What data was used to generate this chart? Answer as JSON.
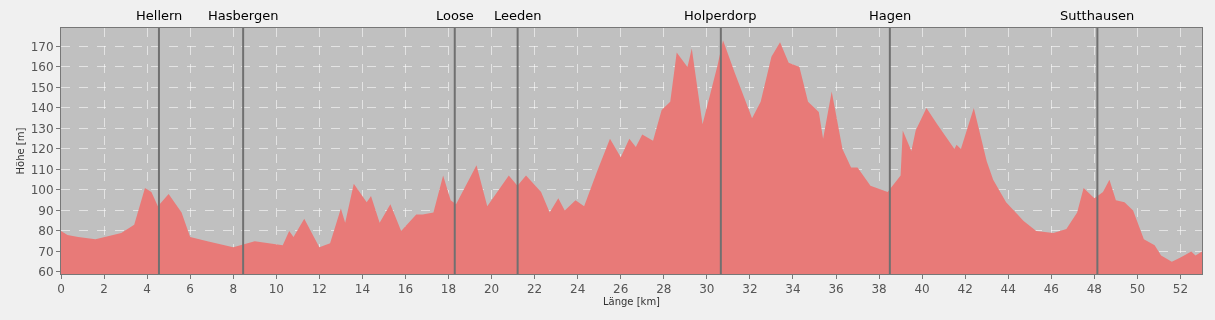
{
  "chart_data": {
    "type": "area",
    "xlabel": "Länge [km]",
    "ylabel": "Höhe [m]",
    "x": [
      0,
      0.3,
      0.8,
      1.6,
      2.8,
      3.4,
      3.9,
      4.2,
      4.5,
      5.0,
      5.6,
      6.0,
      6.8,
      8.0,
      9.0,
      10.3,
      10.6,
      10.8,
      11.3,
      12.0,
      12.5,
      13.0,
      13.2,
      13.6,
      14.2,
      14.4,
      14.8,
      15.3,
      15.8,
      16.5,
      16.8,
      17.3,
      17.75,
      18.1,
      18.35,
      19.3,
      19.8,
      20.8,
      21.2,
      21.6,
      22.3,
      22.7,
      23.1,
      23.4,
      23.9,
      24.3,
      24.9,
      25.5,
      26.0,
      26.4,
      26.7,
      27.0,
      27.5,
      27.9,
      28.3,
      28.6,
      29.1,
      29.3,
      29.8,
      30.5,
      30.75,
      31.3,
      32.1,
      32.5,
      33.0,
      33.4,
      33.8,
      34.3,
      34.7,
      35.2,
      35.4,
      35.8,
      36.3,
      36.7,
      37.0,
      37.6,
      38.4,
      39.0,
      39.1,
      39.5,
      39.7,
      40.2,
      40.7,
      41.5,
      41.6,
      41.8,
      42.4,
      43.0,
      43.3,
      43.9,
      44.7,
      45.3,
      46.1,
      46.7,
      47.2,
      47.5,
      48.0,
      48.4,
      48.7,
      49.0,
      49.4,
      49.8,
      50.3,
      50.8,
      51.1,
      51.6,
      52.0,
      52.5,
      52.7,
      53.0
    ],
    "series": [
      {
        "color": "#e87a78",
        "values": [
          80,
          78,
          77,
          76,
          79,
          83,
          101,
          99,
          92,
          98,
          89,
          77,
          75,
          72,
          75,
          73,
          80,
          77,
          86,
          72,
          74,
          91,
          84,
          103,
          94,
          97,
          84,
          93,
          80,
          88,
          88,
          89,
          107,
          95,
          93,
          112,
          92,
          107,
          102,
          107,
          99,
          89,
          96,
          90,
          95,
          92,
          109,
          125,
          116,
          125,
          121,
          127,
          124,
          139,
          143,
          167,
          160,
          169,
          132,
          161,
          173,
          157,
          135,
          143,
          165,
          172,
          162,
          160,
          143,
          138,
          125,
          148,
          120,
          111,
          111,
          102,
          99,
          107,
          129,
          119,
          129,
          140,
          132,
          120,
          122,
          120,
          140,
          114,
          105,
          94,
          85,
          80,
          79,
          81,
          89,
          101,
          96,
          99,
          105,
          95,
          94,
          90,
          76,
          73,
          68,
          65,
          67,
          70,
          68,
          70
        ]
      }
    ],
    "xlim": [
      0,
      53
    ],
    "xticks": [
      0,
      2,
      4,
      6,
      8,
      10,
      12,
      14,
      16,
      18,
      20,
      22,
      24,
      26,
      28,
      30,
      32,
      34,
      36,
      38,
      40,
      42,
      44,
      46,
      48,
      50,
      52
    ],
    "ylim": [
      59,
      179
    ],
    "yticks": [
      60,
      70,
      80,
      90,
      100,
      110,
      120,
      130,
      140,
      150,
      160,
      170
    ],
    "grid": true,
    "ref_lines": [
      {
        "axis": "x",
        "value": 4.55,
        "label": "Hellern",
        "color": "#707070"
      },
      {
        "axis": "x",
        "value": 8.46,
        "label": "Hasbergen",
        "color": "#707070"
      },
      {
        "axis": "x",
        "value": 18.29,
        "label": "Loose",
        "color": "#707070"
      },
      {
        "axis": "x",
        "value": 21.21,
        "label": "Leeden",
        "color": "#707070"
      },
      {
        "axis": "x",
        "value": 30.65,
        "label": "Holperdorp",
        "color": "#707070"
      },
      {
        "axis": "x",
        "value": 38.5,
        "label": "Hagen",
        "color": "#707070"
      },
      {
        "axis": "x",
        "value": 48.14,
        "label": "Sutthausen",
        "color": "#707070"
      }
    ]
  }
}
